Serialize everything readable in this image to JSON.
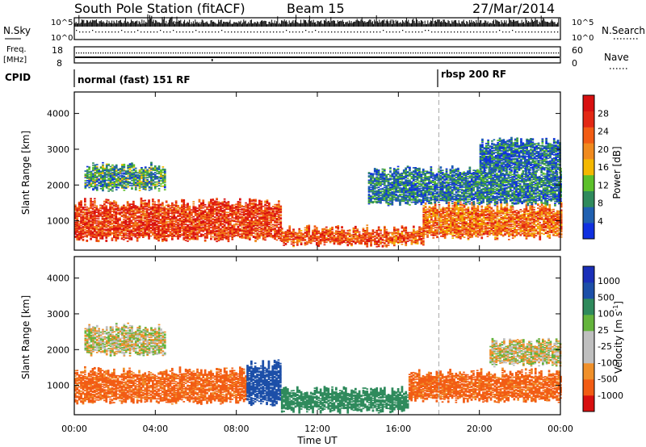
{
  "header": {
    "station": "South Pole Station (fitACF)",
    "beam": "Beam 15",
    "date": "27/Mar/2014"
  },
  "small_panels": {
    "nsky_label": "N.Sky",
    "nsearch_label": "N.Search",
    "nsky_ticks": [
      "10^5",
      "10^0"
    ],
    "nsearch_ticks": [
      "10^5",
      "10^0"
    ],
    "freq_label": "Freq.",
    "freq_unit": "[MHz]",
    "freq_ticks": [
      "18",
      "8"
    ],
    "nave_label": "Nave",
    "nave_ticks": [
      "60",
      "0"
    ],
    "cpid_label": "CPID",
    "cpid_segments": [
      {
        "text": "normal (fast) 151 RF",
        "start_hour": 0
      },
      {
        "text": "rbsp 200 RF",
        "start_hour": 18
      }
    ]
  },
  "x_axis": {
    "label": "Time UT",
    "ticks": [
      "00:00",
      "04:00",
      "08:00",
      "12:00",
      "16:00",
      "20:00",
      "00:00"
    ],
    "range_hours": [
      0,
      24
    ],
    "marker_hour": 18
  },
  "colors": {
    "power": [
      "#1030e0",
      "#2060b0",
      "#2f8a5c",
      "#5cc02a",
      "#f4b800",
      "#f08a1e",
      "#f25c14",
      "#e32814",
      "#d81010"
    ],
    "velocity": [
      "#d81010",
      "#f25c14",
      "#f0902a",
      "#bfbfbf",
      "#bfbfbf",
      "#64b43c",
      "#2f8a5c",
      "#1c4fa8",
      "#1a2fb8"
    ],
    "grid_dash": "#aaaaaa"
  },
  "chart_data": [
    {
      "type": "heatmap",
      "panel": "power",
      "title": "",
      "xlabel": "Time UT",
      "ylabel": "Slant Range [km]",
      "xlim": [
        0,
        24
      ],
      "ylim": [
        180,
        4600
      ],
      "yticks": [
        1000,
        2000,
        3000,
        4000
      ],
      "colorbar": {
        "label": "Power [dB]",
        "ticks": [
          4,
          8,
          12,
          16,
          20,
          24,
          28
        ],
        "range": [
          0,
          32
        ]
      },
      "bands": [
        {
          "start_hour": 0.0,
          "end_hour": 10.2,
          "low_km": 500,
          "high_km": 1500,
          "value": 26
        },
        {
          "start_hour": 10.2,
          "end_hour": 17.2,
          "low_km": 350,
          "high_km": 750,
          "value": 24
        },
        {
          "start_hour": 17.2,
          "end_hour": 24.0,
          "low_km": 550,
          "high_km": 1400,
          "value": 22
        },
        {
          "start_hour": 0.5,
          "end_hour": 4.5,
          "low_km": 1900,
          "high_km": 2500,
          "value": 9
        },
        {
          "start_hour": 14.5,
          "end_hour": 24.0,
          "low_km": 1500,
          "high_km": 2400,
          "value": 7
        },
        {
          "start_hour": 20.0,
          "end_hour": 24.0,
          "low_km": 2400,
          "high_km": 3200,
          "value": 6
        }
      ]
    },
    {
      "type": "heatmap",
      "panel": "velocity",
      "title": "",
      "xlabel": "Time UT",
      "ylabel": "Slant Range [km]",
      "xlim": [
        0,
        24
      ],
      "ylim": [
        180,
        4600
      ],
      "yticks": [
        1000,
        2000,
        3000,
        4000
      ],
      "colorbar": {
        "label": "Velocity [m s^-1]",
        "ticks": [
          1000,
          500,
          100,
          25,
          -25,
          -100,
          -500,
          -1000
        ]
      },
      "bands": [
        {
          "start_hour": 0.0,
          "end_hour": 8.5,
          "low_km": 550,
          "high_km": 1400,
          "value": -150
        },
        {
          "start_hour": 8.5,
          "end_hour": 10.2,
          "low_km": 500,
          "high_km": 1600,
          "value": 800
        },
        {
          "start_hour": 10.2,
          "end_hour": 16.5,
          "low_km": 300,
          "high_km": 850,
          "value": 300
        },
        {
          "start_hour": 16.5,
          "end_hour": 24.0,
          "low_km": 600,
          "high_km": 1350,
          "value": -150
        },
        {
          "start_hour": 0.5,
          "end_hour": 4.5,
          "low_km": 1900,
          "high_km": 2600,
          "value": 0
        },
        {
          "start_hour": 20.5,
          "end_hour": 24.0,
          "low_km": 1600,
          "high_km": 2200,
          "value": 0
        }
      ]
    }
  ]
}
